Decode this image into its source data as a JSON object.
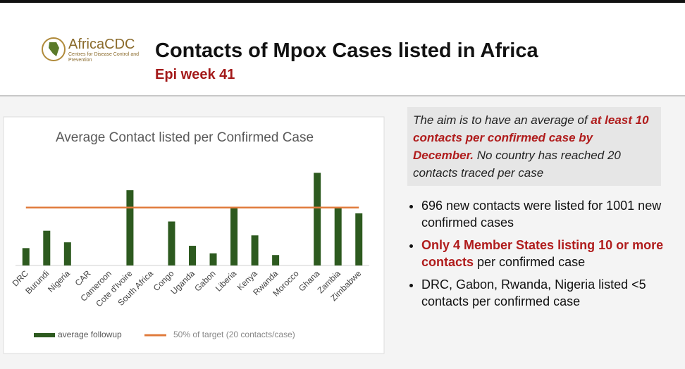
{
  "header": {
    "logo_name": "AfricaCDC",
    "logo_subtitle": "Centres for Disease Control and Prevention",
    "title": "Contacts of Mpox Cases listed in Africa",
    "subtitle": "Epi week 41"
  },
  "chart_data": {
    "type": "bar",
    "title": "Average Contact listed  per Confirmed Case",
    "categories": [
      "DRC",
      "Burundi",
      "Nigeria",
      "CAR",
      "Cameroon",
      "Cote d'Ivoire",
      "South Africa",
      "Congo",
      "Uganda",
      "Gabon",
      "Liberia",
      "Kenya",
      "Rwanda",
      "Morocco",
      "Ghana",
      "Zambia",
      "Zimbabwe"
    ],
    "series": [
      {
        "name": "average followup",
        "color": "#2d5a1f",
        "values": [
          3,
          6,
          4,
          0,
          0,
          13,
          0,
          7.6,
          3.4,
          2.1,
          10,
          5.2,
          1.8,
          0,
          16,
          10,
          9
        ]
      }
    ],
    "reference_line": {
      "name": "50% of target (20 contacts/case)",
      "value": 10,
      "color": "#e07b3c"
    },
    "ylim": [
      0,
      18
    ]
  },
  "note": [
    "The aim is to have an average of ",
    "at least 10 contacts per confirmed case by December.",
    " No country has reached 20 contacts traced per case"
  ],
  "bullets": [
    "696 new contacts were listed for 1001 new confirmed cases",
    [
      "Only 4 Member States listing 10 or more contacts",
      " per confirmed case"
    ],
    "DRC, Gabon, Rwanda, Nigeria listed <5 contacts per confirmed case"
  ]
}
